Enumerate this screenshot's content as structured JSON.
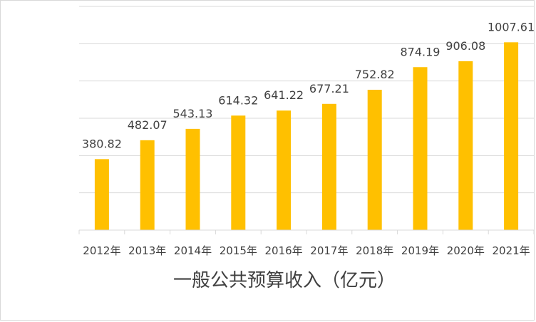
{
  "chart_data": {
    "type": "bar",
    "categories": [
      "2012年",
      "2013年",
      "2014年",
      "2015年",
      "2016年",
      "2017年",
      "2018年",
      "2019年",
      "2020年",
      "2021年"
    ],
    "values": [
      380.82,
      482.07,
      543.13,
      614.32,
      641.22,
      677.21,
      752.82,
      874.19,
      906.08,
      1007.61
    ],
    "value_labels": [
      "380.82",
      "482.07",
      "543.13",
      "614.32",
      "641.22",
      "677.21",
      "752.82",
      "874.19",
      "906.08",
      "1007.61"
    ],
    "title": "一般公共预算收入（亿元）",
    "xlabel": "",
    "ylabel": "",
    "ylim": [
      0,
      1200
    ],
    "grid": true,
    "bar_color": "#FFC000",
    "gridline_color": "#D9D9D9",
    "text_color": "#404040"
  }
}
